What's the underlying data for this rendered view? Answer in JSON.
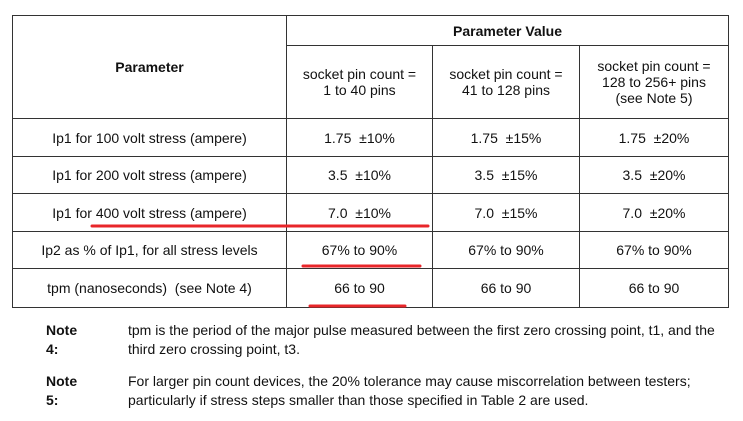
{
  "table": {
    "header": {
      "parameter": "Parameter",
      "group": "Parameter Value",
      "columns": [
        "socket pin count =\n1 to 40 pins",
        "socket pin count =\n41 to 128 pins",
        "socket pin count =\n128 to 256+ pins\n(see Note 5)"
      ]
    },
    "rows": [
      [
        "Ip1 for 100 volt stress (ampere)",
        "1.75  ±10%",
        "1.75  ±15%",
        "1.75  ±20%"
      ],
      [
        "Ip1 for 200 volt stress (ampere)",
        "3.5  ±10%",
        "3.5  ±15%",
        "3.5  ±20%"
      ],
      [
        "Ip1 for 400 volt stress (ampere)",
        "7.0  ±10%",
        "7.0  ±15%",
        "7.0  ±20%"
      ],
      [
        "Ip2 as % of Ip1, for all stress levels",
        "67% to 90%",
        "67% to 90%",
        "67% to 90%"
      ],
      [
        "tpm (nanoseconds)  (see Note 4)",
        "66 to 90",
        "66 to 90",
        "66 to 90"
      ]
    ]
  },
  "notes": [
    {
      "label": "Note 4:",
      "text": "tpm is the period of the major pulse measured between the first zero crossing point, t1, and the third zero crossing point, t3."
    },
    {
      "label": "Note 5:",
      "text": "For larger pin count devices, the 20% tolerance may cause miscorrelation between testers; particularly if stress steps smaller than those specified in Table 2 are used."
    }
  ]
}
